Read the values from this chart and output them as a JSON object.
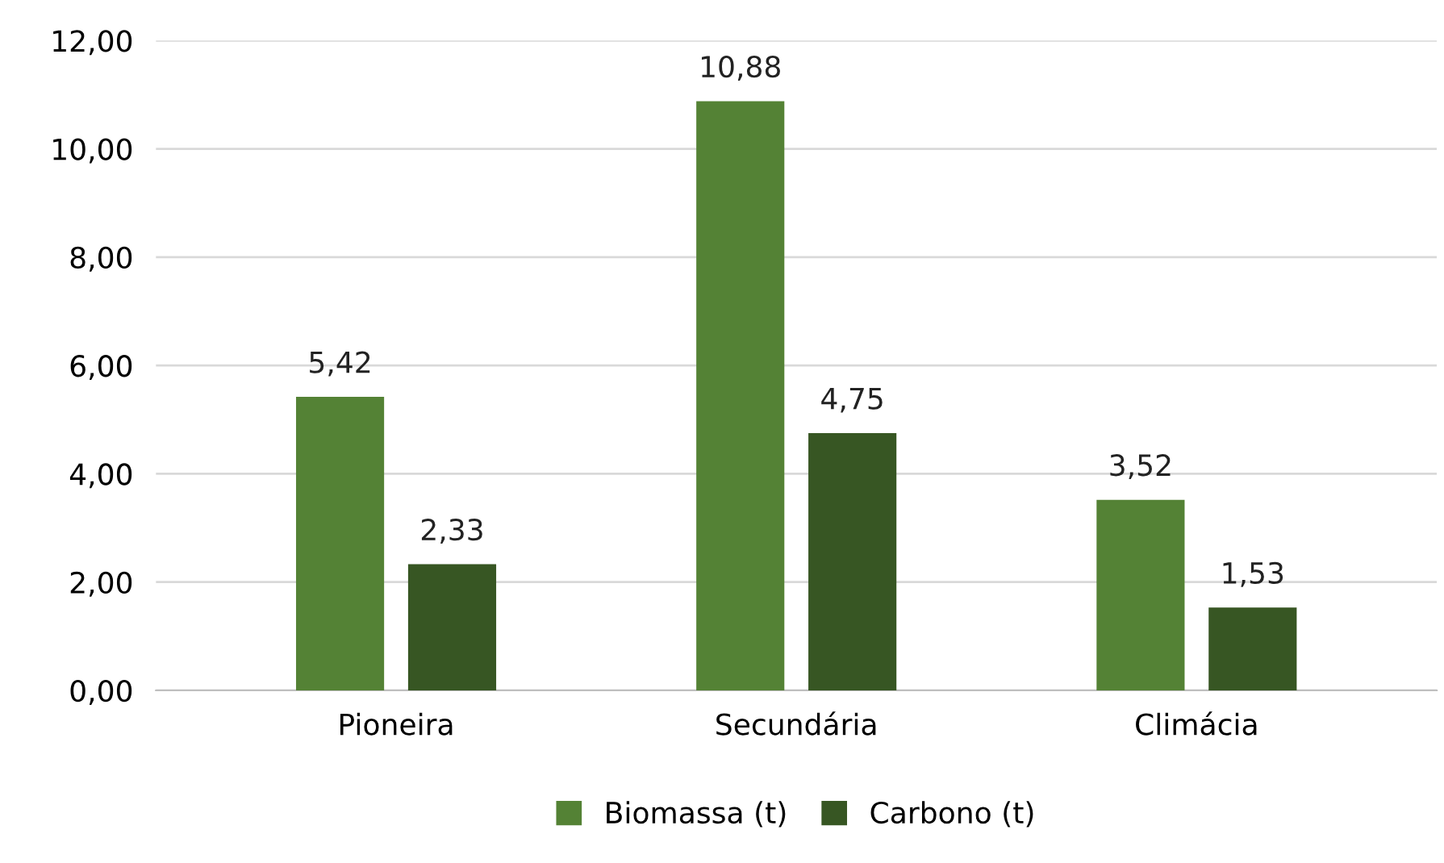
{
  "chart_data": {
    "type": "bar",
    "categories": [
      "Pioneira",
      "Secundária",
      "Climácia"
    ],
    "series": [
      {
        "name": "Biomassa (t)",
        "color": "#548235",
        "values": [
          5.42,
          10.88,
          3.52
        ],
        "value_labels": [
          "5,42",
          "10,88",
          "3,52"
        ]
      },
      {
        "name": "Carbono (t)",
        "color": "#375623",
        "values": [
          2.33,
          4.75,
          1.53
        ],
        "value_labels": [
          "2,33",
          "4,75",
          "1,53"
        ]
      }
    ],
    "ylim": [
      0,
      12
    ],
    "yticks": [
      {
        "value": 0,
        "label": "0,00"
      },
      {
        "value": 2,
        "label": "2,00"
      },
      {
        "value": 4,
        "label": "4,00"
      },
      {
        "value": 6,
        "label": "6,00"
      },
      {
        "value": 8,
        "label": "8,00"
      },
      {
        "value": 10,
        "label": "10,00"
      },
      {
        "value": 12,
        "label": "12,00"
      }
    ],
    "grid": "y",
    "legend": "bottom"
  }
}
